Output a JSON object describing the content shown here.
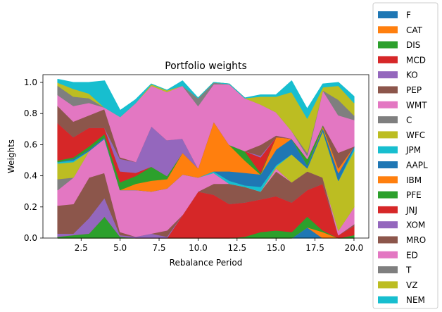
{
  "chart_data": {
    "type": "area",
    "stacked": true,
    "title": "Portfolio weights",
    "xlabel": "Rebalance Period",
    "ylabel": "Weights",
    "xlim": [
      0.05,
      20.95
    ],
    "ylim": [
      0,
      1.05
    ],
    "x": [
      1,
      2,
      3,
      4,
      5,
      6,
      7,
      8,
      9,
      10,
      11,
      12,
      13,
      14,
      15,
      16,
      17,
      18,
      19,
      20
    ],
    "xticks": [
      2.5,
      5.0,
      7.5,
      10.0,
      12.5,
      15.0,
      17.5,
      20.0
    ],
    "xtick_labels": [
      "2.5",
      "5.0",
      "7.5",
      "10.0",
      "12.5",
      "15.0",
      "17.5",
      "20.0"
    ],
    "yticks": [
      0.0,
      0.2,
      0.4,
      0.6,
      0.8,
      1.0
    ],
    "ytick_labels": [
      "0.0",
      "0.2",
      "0.4",
      "0.6",
      "0.8",
      "1.0"
    ],
    "grid": false,
    "legend_position": "outside-right",
    "series": [
      {
        "name": "F",
        "color": "#1f77b4",
        "values": [
          0,
          0,
          0,
          0,
          0,
          0,
          0,
          0,
          0,
          0,
          0,
          0,
          0,
          0,
          0,
          0,
          0.07,
          0,
          0,
          0
        ]
      },
      {
        "name": "CAT",
        "color": "#ff7f0e",
        "values": [
          0,
          0,
          0,
          0,
          0,
          0,
          0,
          0,
          0,
          0,
          0,
          0,
          0,
          0,
          0,
          0,
          0,
          0.04,
          0,
          0
        ]
      },
      {
        "name": "DIS",
        "color": "#2ca02c",
        "values": [
          0.01,
          0.02,
          0.03,
          0.14,
          0.01,
          0,
          0,
          0,
          0,
          0,
          0,
          0,
          0.01,
          0.04,
          0.05,
          0.04,
          0.07,
          0.01,
          0,
          0.02
        ]
      },
      {
        "name": "MCD",
        "color": "#d62728",
        "values": [
          0,
          0,
          0,
          0,
          0,
          0,
          0,
          0,
          0.15,
          0.3,
          0.28,
          0.22,
          0.22,
          0.21,
          0.22,
          0.19,
          0.17,
          0.3,
          0.02,
          0.06
        ]
      },
      {
        "name": "KO",
        "color": "#9467bd",
        "values": [
          0.02,
          0.01,
          0.1,
          0.12,
          0.01,
          0.01,
          0.03,
          0.01,
          0,
          0,
          0,
          0,
          0,
          0,
          0,
          0,
          0,
          0,
          0,
          0
        ]
      },
      {
        "name": "PEP",
        "color": "#8c564b",
        "values": [
          0.18,
          0.19,
          0.26,
          0.16,
          0.02,
          0,
          0,
          0.04,
          0,
          0,
          0.07,
          0.13,
          0.1,
          0.05,
          0.16,
          0.13,
          0.12,
          0.04,
          0,
          0.01
        ]
      },
      {
        "name": "WMT",
        "color": "#e377c2",
        "values": [
          0.1,
          0.17,
          0.17,
          0.22,
          0.27,
          0.3,
          0.27,
          0.27,
          0.26,
          0.09,
          0.07,
          0,
          0,
          0,
          0.02,
          0,
          0,
          0,
          0.03,
          0.11
        ]
      },
      {
        "name": "C",
        "color": "#7f7f7f",
        "values": [
          0.07,
          0,
          0,
          0,
          0,
          0,
          0,
          0,
          0,
          0,
          0,
          0,
          0,
          0,
          0,
          0,
          0,
          0,
          0,
          0
        ]
      },
      {
        "name": "WFC",
        "color": "#bcbd22",
        "values": [
          0.1,
          0.1,
          0,
          0,
          0,
          0,
          0,
          0,
          0,
          0,
          0,
          0,
          0,
          0,
          0.01,
          0.18,
          0.02,
          0.3,
          0.32,
          0.36
        ]
      },
      {
        "name": "JPM",
        "color": "#17becf",
        "values": [
          0.01,
          0.01,
          0,
          0,
          0,
          0,
          0,
          0,
          0,
          0,
          0.01,
          0.02,
          0.01,
          0.03,
          0.01,
          0,
          0,
          0,
          0,
          0.02
        ]
      },
      {
        "name": "AAPL",
        "color": "#1f77b4",
        "values": [
          0,
          0.01,
          0.01,
          0.01,
          0,
          0,
          0,
          0,
          0,
          0,
          0,
          0.06,
          0.08,
          0.08,
          0.1,
          0.1,
          0.02,
          0.02,
          0.05,
          0.01
        ]
      },
      {
        "name": "IBM",
        "color": "#ff7f0e",
        "values": [
          0,
          0,
          0,
          0,
          0,
          0.04,
          0.07,
          0.06,
          0.14,
          0.06,
          0.32,
          0.17,
          0.08,
          0,
          0.08,
          0,
          0,
          0.01,
          0.03,
          0
        ]
      },
      {
        "name": "PFE",
        "color": "#2ca02c",
        "values": [
          0.01,
          0.01,
          0.02,
          0.02,
          0.05,
          0.05,
          0.09,
          0.02,
          0,
          0,
          0,
          0,
          0.06,
          0.01,
          0,
          0,
          0.04,
          0.01,
          0,
          0
        ]
      },
      {
        "name": "JNJ",
        "color": "#d62728",
        "values": [
          0.24,
          0.13,
          0.12,
          0.04,
          0.07,
          0.02,
          0,
          0,
          0,
          0,
          0,
          0,
          0,
          0.1,
          0,
          0,
          0,
          0,
          0,
          0
        ]
      },
      {
        "name": "XOM",
        "color": "#9467bd",
        "values": [
          0,
          0,
          0,
          0,
          0.08,
          0.07,
          0.26,
          0.23,
          0.09,
          0,
          0,
          0,
          0,
          0.01,
          0,
          0,
          0,
          0,
          0,
          0
        ]
      },
      {
        "name": "MRO",
        "color": "#8c564b",
        "values": [
          0.11,
          0.1,
          0.08,
          0.12,
          0.01,
          0,
          0,
          0,
          0,
          0,
          0,
          0,
          0,
          0.07,
          0.01,
          0,
          0,
          0,
          0.1,
          0
        ]
      },
      {
        "name": "ED",
        "color": "#e377c2",
        "values": [
          0.07,
          0.1,
          0.08,
          0.01,
          0.26,
          0.38,
          0.26,
          0.31,
          0.34,
          0.4,
          0.24,
          0.39,
          0.34,
          0.26,
          0.15,
          0.05,
          0.02,
          0.22,
          0.24,
          0.17
        ]
      },
      {
        "name": "T",
        "color": "#7f7f7f",
        "values": [
          0.06,
          0.06,
          0.03,
          0,
          0,
          0,
          0,
          0,
          0,
          0.05,
          0.01,
          0,
          0,
          0,
          0,
          0,
          0.02,
          0,
          0.1,
          0.03
        ]
      },
      {
        "name": "VZ",
        "color": "#bcbd22",
        "values": [
          0.02,
          0.05,
          0.03,
          0,
          0,
          0,
          0.01,
          0.01,
          0,
          0,
          0,
          0,
          0,
          0.05,
          0.1,
          0.25,
          0.22,
          0.02,
          0.09,
          0.08
        ]
      },
      {
        "name": "NEM",
        "color": "#17becf",
        "values": [
          0.02,
          0.04,
          0.07,
          0.17,
          0.04,
          0.02,
          0,
          0,
          0.03,
          0,
          0,
          0,
          0,
          0.01,
          0.01,
          0.07,
          0.06,
          0.02,
          0.02,
          0.04
        ]
      }
    ]
  }
}
